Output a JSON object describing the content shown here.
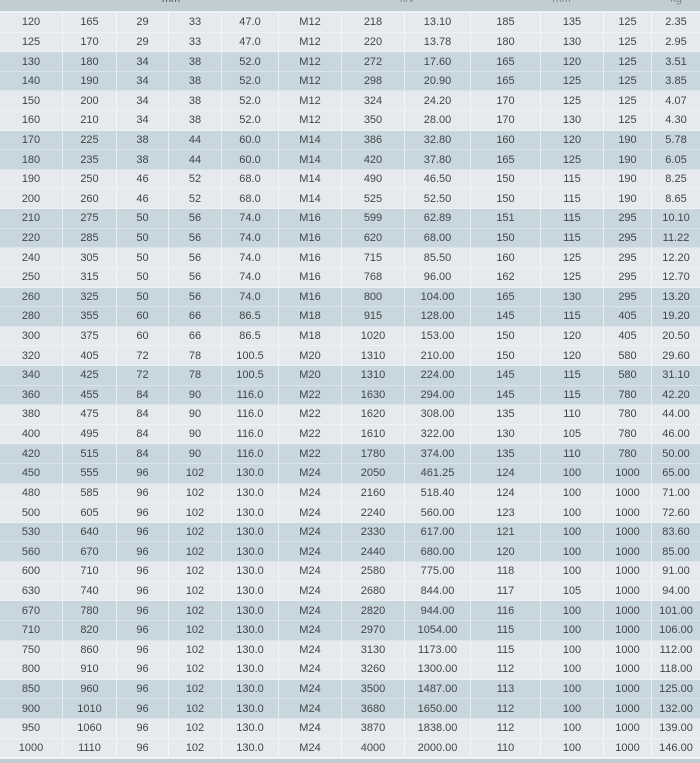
{
  "table": {
    "units_row": {
      "segments": [
        {
          "text": "mm",
          "col_start": 1,
          "col_end": 6,
          "faint": false
        },
        {
          "text": "kN",
          "col_start": 7,
          "col_end": 8,
          "faint": true
        },
        {
          "text": "mm",
          "col_start": 9,
          "col_end": 11,
          "faint": true
        },
        {
          "text": "kg",
          "col_start": 12,
          "col_end": 12,
          "faint": true
        }
      ]
    },
    "colors": {
      "row_light": "#e6eaef",
      "row_dark": "#c8d6de",
      "header_strip": "#c2ccd3",
      "text": "#404549",
      "separator": "#f2f5f8"
    },
    "rows": [
      [
        "120",
        "165",
        "29",
        "33",
        "47.0",
        "M12",
        "218",
        "13.10",
        "185",
        "135",
        "125",
        "2.35"
      ],
      [
        "125",
        "170",
        "29",
        "33",
        "47.0",
        "M12",
        "220",
        "13.78",
        "180",
        "130",
        "125",
        "2.95"
      ],
      [
        "130",
        "180",
        "34",
        "38",
        "52.0",
        "M12",
        "272",
        "17.60",
        "165",
        "120",
        "125",
        "3.51"
      ],
      [
        "140",
        "190",
        "34",
        "38",
        "52.0",
        "M12",
        "298",
        "20.90",
        "165",
        "125",
        "125",
        "3.85"
      ],
      [
        "150",
        "200",
        "34",
        "38",
        "52.0",
        "M12",
        "324",
        "24.20",
        "170",
        "125",
        "125",
        "4.07"
      ],
      [
        "160",
        "210",
        "34",
        "38",
        "52.0",
        "M12",
        "350",
        "28.00",
        "170",
        "130",
        "125",
        "4.30"
      ],
      [
        "170",
        "225",
        "38",
        "44",
        "60.0",
        "M14",
        "386",
        "32.80",
        "160",
        "120",
        "190",
        "5.78"
      ],
      [
        "180",
        "235",
        "38",
        "44",
        "60.0",
        "M14",
        "420",
        "37.80",
        "165",
        "125",
        "190",
        "6.05"
      ],
      [
        "190",
        "250",
        "46",
        "52",
        "68.0",
        "M14",
        "490",
        "46.50",
        "150",
        "115",
        "190",
        "8.25"
      ],
      [
        "200",
        "260",
        "46",
        "52",
        "68.0",
        "M14",
        "525",
        "52.50",
        "150",
        "115",
        "190",
        "8.65"
      ],
      [
        "210",
        "275",
        "50",
        "56",
        "74.0",
        "M16",
        "599",
        "62.89",
        "151",
        "115",
        "295",
        "10.10"
      ],
      [
        "220",
        "285",
        "50",
        "56",
        "74.0",
        "M16",
        "620",
        "68.00",
        "150",
        "115",
        "295",
        "11.22"
      ],
      [
        "240",
        "305",
        "50",
        "56",
        "74.0",
        "M16",
        "715",
        "85.50",
        "160",
        "125",
        "295",
        "12.20"
      ],
      [
        "250",
        "315",
        "50",
        "56",
        "74.0",
        "M16",
        "768",
        "96.00",
        "162",
        "125",
        "295",
        "12.70"
      ],
      [
        "260",
        "325",
        "50",
        "56",
        "74.0",
        "M16",
        "800",
        "104.00",
        "165",
        "130",
        "295",
        "13.20"
      ],
      [
        "280",
        "355",
        "60",
        "66",
        "86.5",
        "M18",
        "915",
        "128.00",
        "145",
        "115",
        "405",
        "19.20"
      ],
      [
        "300",
        "375",
        "60",
        "66",
        "86.5",
        "M18",
        "1020",
        "153.00",
        "150",
        "120",
        "405",
        "20.50"
      ],
      [
        "320",
        "405",
        "72",
        "78",
        "100.5",
        "M20",
        "1310",
        "210.00",
        "150",
        "120",
        "580",
        "29.60"
      ],
      [
        "340",
        "425",
        "72",
        "78",
        "100.5",
        "M20",
        "1310",
        "224.00",
        "145",
        "115",
        "580",
        "31.10"
      ],
      [
        "360",
        "455",
        "84",
        "90",
        "116.0",
        "M22",
        "1630",
        "294.00",
        "145",
        "115",
        "780",
        "42.20"
      ],
      [
        "380",
        "475",
        "84",
        "90",
        "116.0",
        "M22",
        "1620",
        "308.00",
        "135",
        "110",
        "780",
        "44.00"
      ],
      [
        "400",
        "495",
        "84",
        "90",
        "116.0",
        "M22",
        "1610",
        "322.00",
        "130",
        "105",
        "780",
        "46.00"
      ],
      [
        "420",
        "515",
        "84",
        "90",
        "116.0",
        "M22",
        "1780",
        "374.00",
        "135",
        "110",
        "780",
        "50.00"
      ],
      [
        "450",
        "555",
        "96",
        "102",
        "130.0",
        "M24",
        "2050",
        "461.25",
        "124",
        "100",
        "1000",
        "65.00"
      ],
      [
        "480",
        "585",
        "96",
        "102",
        "130.0",
        "M24",
        "2160",
        "518.40",
        "124",
        "100",
        "1000",
        "71.00"
      ],
      [
        "500",
        "605",
        "96",
        "102",
        "130.0",
        "M24",
        "2240",
        "560.00",
        "123",
        "100",
        "1000",
        "72.60"
      ],
      [
        "530",
        "640",
        "96",
        "102",
        "130.0",
        "M24",
        "2330",
        "617.00",
        "121",
        "100",
        "1000",
        "83.60"
      ],
      [
        "560",
        "670",
        "96",
        "102",
        "130.0",
        "M24",
        "2440",
        "680.00",
        "120",
        "100",
        "1000",
        "85.00"
      ],
      [
        "600",
        "710",
        "96",
        "102",
        "130.0",
        "M24",
        "2580",
        "775.00",
        "118",
        "100",
        "1000",
        "91.00"
      ],
      [
        "630",
        "740",
        "96",
        "102",
        "130.0",
        "M24",
        "2680",
        "844.00",
        "117",
        "105",
        "1000",
        "94.00"
      ],
      [
        "670",
        "780",
        "96",
        "102",
        "130.0",
        "M24",
        "2820",
        "944.00",
        "116",
        "100",
        "1000",
        "101.00"
      ],
      [
        "710",
        "820",
        "96",
        "102",
        "130.0",
        "M24",
        "2970",
        "1054.00",
        "115",
        "100",
        "1000",
        "106.00"
      ],
      [
        "750",
        "860",
        "96",
        "102",
        "130.0",
        "M24",
        "3130",
        "1173.00",
        "115",
        "100",
        "1000",
        "112.00"
      ],
      [
        "800",
        "910",
        "96",
        "102",
        "130.0",
        "M24",
        "3260",
        "1300.00",
        "112",
        "100",
        "1000",
        "118.00"
      ],
      [
        "850",
        "960",
        "96",
        "102",
        "130.0",
        "M24",
        "3500",
        "1487.00",
        "113",
        "100",
        "1000",
        "125.00"
      ],
      [
        "900",
        "1010",
        "96",
        "102",
        "130.0",
        "M24",
        "3680",
        "1650.00",
        "112",
        "100",
        "1000",
        "132.00"
      ],
      [
        "950",
        "1060",
        "96",
        "102",
        "130.0",
        "M24",
        "3870",
        "1838.00",
        "112",
        "100",
        "1000",
        "139.00"
      ],
      [
        "1000",
        "1110",
        "96",
        "102",
        "130.0",
        "M24",
        "4000",
        "2000.00",
        "110",
        "100",
        "1000",
        "146.00"
      ]
    ]
  }
}
